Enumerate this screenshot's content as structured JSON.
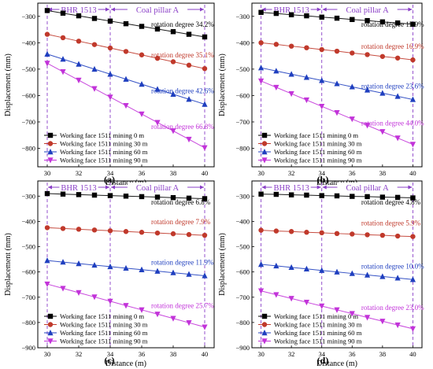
{
  "chart_data": [
    {
      "type": "line",
      "panel_label": "(a)",
      "xlabel": "Distance (m)",
      "ylabel": "Displacement (mm)",
      "xlim": [
        29.4,
        40.6
      ],
      "ylim": [
        -870,
        -250
      ],
      "xticks": [
        30,
        32,
        34,
        36,
        38,
        40
      ],
      "yticks": [
        -300,
        -400,
        -500,
        -600,
        -700,
        -800
      ],
      "zones": [
        {
          "label": "BHR 1513",
          "x0": 30,
          "x1": 34
        },
        {
          "label": "Coal pillar A",
          "x0": 34,
          "x1": 40
        }
      ],
      "legend_position": "bottom-left",
      "series": [
        {
          "name": "Working face 1511 mining 0 m",
          "marker": "square",
          "color": "#000000",
          "annotation": "rotation degree 34.2%",
          "x": [
            30,
            31,
            32,
            33,
            34,
            35,
            36,
            37,
            38,
            39,
            40
          ],
          "values": [
            -278,
            -288,
            -298,
            -308,
            -318,
            -328,
            -338,
            -348,
            -358,
            -368,
            -378
          ]
        },
        {
          "name": "Working face 1511 mining 30 m",
          "marker": "circle",
          "color": "#c0392b",
          "annotation": "rotation degree 35.1%",
          "x": [
            30,
            31,
            32,
            33,
            34,
            35,
            36,
            37,
            38,
            39,
            40
          ],
          "values": [
            -368,
            -381,
            -394,
            -407,
            -420,
            -433,
            -446,
            -459,
            -472,
            -485,
            -498
          ]
        },
        {
          "name": "Working face 1511 mining 60 m",
          "marker": "triangle-up",
          "color": "#1f3fbf",
          "annotation": "rotation degree 42.6%",
          "x": [
            30,
            31,
            32,
            33,
            34,
            35,
            36,
            37,
            38,
            39,
            40
          ],
          "values": [
            -443,
            -462,
            -481,
            -500,
            -519,
            -538,
            -557,
            -576,
            -595,
            -614,
            -633
          ]
        },
        {
          "name": "Working face 1511 mining 90 m",
          "marker": "triangle-down",
          "color": "#c233d9",
          "annotation": "rotation degree 66.8%",
          "x": [
            30,
            31,
            32,
            33,
            34,
            35,
            36,
            37,
            38,
            39,
            40
          ],
          "values": [
            -478,
            -510,
            -542,
            -574,
            -606,
            -638,
            -670,
            -702,
            -734,
            -766,
            -798
          ]
        }
      ]
    },
    {
      "type": "line",
      "panel_label": "(b)",
      "xlabel": "Distance (m)",
      "ylabel": "Displacement (mm)",
      "xlim": [
        29.4,
        40.6
      ],
      "ylim": [
        -870,
        -250
      ],
      "xticks": [
        30,
        32,
        34,
        36,
        38,
        40
      ],
      "yticks": [
        -300,
        -400,
        -500,
        -600,
        -700,
        -800
      ],
      "zones": [
        {
          "label": "BHR 1513",
          "x0": 30,
          "x1": 34
        },
        {
          "label": "Coal pillar A",
          "x0": 34,
          "x1": 40
        }
      ],
      "legend_position": "bottom-left",
      "series": [
        {
          "name": "Working face 1511 mining 0 m",
          "marker": "square",
          "color": "#000000",
          "annotation": "rotation degree 15.9%",
          "x": [
            30,
            31,
            32,
            33,
            34,
            35,
            36,
            37,
            38,
            39,
            40
          ],
          "values": [
            -285,
            -289,
            -294,
            -298,
            -303,
            -307,
            -312,
            -316,
            -321,
            -325,
            -330
          ]
        },
        {
          "name": "Working face 1511 mining 30 m",
          "marker": "circle",
          "color": "#c0392b",
          "annotation": "rotation degree 16.9%",
          "x": [
            30,
            31,
            32,
            33,
            34,
            35,
            36,
            37,
            38,
            39,
            40
          ],
          "values": [
            -400,
            -406,
            -413,
            -419,
            -426,
            -432,
            -439,
            -445,
            -452,
            -458,
            -465
          ]
        },
        {
          "name": "Working face 1511 mining 60 m",
          "marker": "triangle-up",
          "color": "#1f3fbf",
          "annotation": "rotation degree 23.6%",
          "x": [
            30,
            31,
            32,
            33,
            34,
            35,
            36,
            37,
            38,
            39,
            40
          ],
          "values": [
            -495,
            -507,
            -519,
            -531,
            -543,
            -555,
            -567,
            -579,
            -591,
            -603,
            -615
          ]
        },
        {
          "name": "Working face 1511 mining 90 m",
          "marker": "triangle-down",
          "color": "#c233d9",
          "annotation": "rotation degree 44.0%",
          "x": [
            30,
            31,
            32,
            33,
            34,
            35,
            36,
            37,
            38,
            39,
            40
          ],
          "values": [
            -545,
            -569,
            -593,
            -617,
            -641,
            -665,
            -689,
            -713,
            -737,
            -761,
            -785
          ]
        }
      ]
    },
    {
      "type": "line",
      "panel_label": "(c)",
      "xlabel": "Distance (m)",
      "ylabel": "Displacement (mm)",
      "xlim": [
        29.4,
        40.6
      ],
      "ylim": [
        -900,
        -240
      ],
      "xticks": [
        30,
        32,
        34,
        36,
        38,
        40
      ],
      "yticks": [
        -300,
        -400,
        -500,
        -600,
        -700,
        -800,
        -900
      ],
      "zones": [
        {
          "label": "BHR 1513",
          "x0": 30,
          "x1": 34
        },
        {
          "label": "Coal pillar A",
          "x0": 34,
          "x1": 40
        }
      ],
      "legend_position": "bottom-left",
      "series": [
        {
          "name": "Working face 1511 mining 0 m",
          "marker": "square",
          "color": "#000000",
          "annotation": "rotation degree 6.8%",
          "x": [
            30,
            31,
            32,
            33,
            34,
            35,
            36,
            37,
            38,
            39,
            40
          ],
          "values": [
            -290,
            -292,
            -294,
            -296,
            -298,
            -300,
            -302,
            -304,
            -306,
            -308,
            -310
          ]
        },
        {
          "name": "Working face 1511 mining 30 m",
          "marker": "circle",
          "color": "#c0392b",
          "annotation": "rotation degree 7.9%",
          "x": [
            30,
            31,
            32,
            33,
            34,
            35,
            36,
            37,
            38,
            39,
            40
          ],
          "values": [
            -425,
            -428,
            -431,
            -434,
            -437,
            -440,
            -443,
            -446,
            -449,
            -452,
            -455
          ]
        },
        {
          "name": "Working face 1511 mining 60 m",
          "marker": "triangle-up",
          "color": "#1f3fbf",
          "annotation": "rotation degree 11.9%",
          "x": [
            30,
            31,
            32,
            33,
            34,
            35,
            36,
            37,
            38,
            39,
            40
          ],
          "values": [
            -555,
            -561,
            -567,
            -573,
            -579,
            -585,
            -591,
            -597,
            -603,
            -609,
            -615
          ]
        },
        {
          "name": "Working face 1511 mining 90 m",
          "marker": "triangle-down",
          "color": "#c233d9",
          "annotation": "rotation degree 25.7%",
          "x": [
            30,
            31,
            32,
            33,
            34,
            35,
            36,
            37,
            38,
            39,
            40
          ],
          "values": [
            -648,
            -665,
            -682,
            -699,
            -716,
            -733,
            -750,
            -767,
            -784,
            -801,
            -818
          ]
        }
      ]
    },
    {
      "type": "line",
      "panel_label": "(d)",
      "xlabel": "Distance (m)",
      "ylabel": "Displacement (mm)",
      "xlim": [
        29.4,
        40.6
      ],
      "ylim": [
        -900,
        -240
      ],
      "xticks": [
        30,
        32,
        34,
        36,
        38,
        40
      ],
      "yticks": [
        -300,
        -400,
        -500,
        -600,
        -700,
        -800,
        -900
      ],
      "zones": [
        {
          "label": "BHR 1513",
          "x0": 30,
          "x1": 34
        },
        {
          "label": "Coal pillar A",
          "x0": 34,
          "x1": 40
        }
      ],
      "legend_position": "bottom-left",
      "series": [
        {
          "name": "Working face 1511 mining 0 m",
          "marker": "square",
          "color": "#000000",
          "annotation": "rotation degree 4.8%",
          "x": [
            30,
            31,
            32,
            33,
            34,
            35,
            36,
            37,
            38,
            39,
            40
          ],
          "values": [
            -292,
            -293,
            -295,
            -296,
            -298,
            -299,
            -301,
            -302,
            -304,
            -305,
            -307
          ]
        },
        {
          "name": "Working face 1511 mining 30 m",
          "marker": "circle",
          "color": "#c0392b",
          "annotation": "rotation degree 5.9%",
          "x": [
            30,
            31,
            32,
            33,
            34,
            35,
            36,
            37,
            38,
            39,
            40
          ],
          "values": [
            -435,
            -438,
            -440,
            -443,
            -445,
            -448,
            -450,
            -453,
            -455,
            -458,
            -460
          ]
        },
        {
          "name": "Working face 1511 mining 60 m",
          "marker": "triangle-up",
          "color": "#1f3fbf",
          "annotation": "rotation degree 10.0%",
          "x": [
            30,
            31,
            32,
            33,
            34,
            35,
            36,
            37,
            38,
            39,
            40
          ],
          "values": [
            -570,
            -576,
            -582,
            -588,
            -594,
            -600,
            -606,
            -612,
            -618,
            -624,
            -630
          ]
        },
        {
          "name": "Working face 1511 mining 90 m",
          "marker": "triangle-down",
          "color": "#c233d9",
          "annotation": "rotation degree 23.0%",
          "x": [
            30,
            31,
            32,
            33,
            34,
            35,
            36,
            37,
            38,
            39,
            40
          ],
          "values": [
            -675,
            -690,
            -705,
            -720,
            -735,
            -750,
            -765,
            -780,
            -795,
            -810,
            -825
          ]
        }
      ]
    }
  ]
}
